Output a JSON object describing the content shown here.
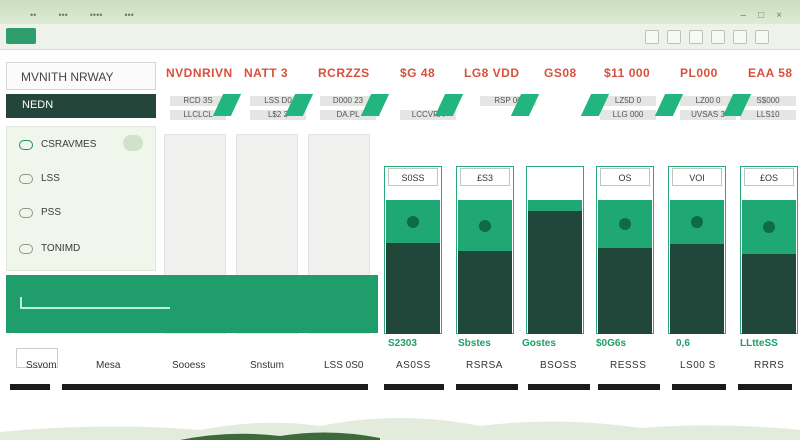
{
  "window": {
    "tabs": [
      "••",
      "•••",
      "••••",
      "•••"
    ],
    "controls": [
      "–",
      "□",
      "×"
    ]
  },
  "header": {
    "title": "MVNITH NRWAY",
    "columns": [
      "NVDNRIVN",
      "NATT 3",
      "RCRZZS",
      "$G 48",
      "LG8 VDD",
      "GS08",
      "$11 000",
      "PL000",
      "EAA 58"
    ]
  },
  "subheader": {
    "nav_label": "NEDN",
    "row1": [
      "RCD 3S",
      "LSS D0",
      "D000 23",
      "RSP 00",
      "LZ5D 0",
      "LZ00 0",
      "S$000"
    ],
    "row2": [
      "LLCLCL",
      "L$2 3",
      "DA.PL",
      "LCCVRA",
      "LLG 000",
      "UVSAS 3",
      "LLS10"
    ]
  },
  "menu": {
    "items": [
      "CSRAVMES",
      "LSS",
      "PSS",
      "TONIMD"
    ]
  },
  "chart_data": {
    "type": "bar",
    "bars": [
      {
        "label": "S0SS",
        "top_fill": 0.32,
        "body_fill": 0.68
      },
      {
        "label": "£S3",
        "top_fill": 0.38,
        "body_fill": 0.62
      },
      {
        "label": "",
        "top_fill": 0.08,
        "body_fill": 0.92
      },
      {
        "label": "OS",
        "top_fill": 0.36,
        "body_fill": 0.64
      },
      {
        "label": "VOI",
        "top_fill": 0.33,
        "body_fill": 0.67
      },
      {
        "label": "£OS",
        "top_fill": 0.4,
        "body_fill": 0.6
      }
    ],
    "value_labels": [
      "S2303",
      "Sbstes",
      "Gostes",
      "$0G6s",
      "0,6",
      "LLtteSS"
    ]
  },
  "footer": {
    "labels": [
      "Ssvom",
      "Mesa",
      "Sooess",
      "Snstum",
      "LSS 0S0"
    ],
    "values": [
      "AS0SS",
      "RSRSA",
      "BSOSS",
      "RESSS",
      "LS00 S",
      "RRRS"
    ]
  },
  "colors": {
    "accent": "#1fa874",
    "dark": "#21463a",
    "header_text": "#d9503a"
  }
}
